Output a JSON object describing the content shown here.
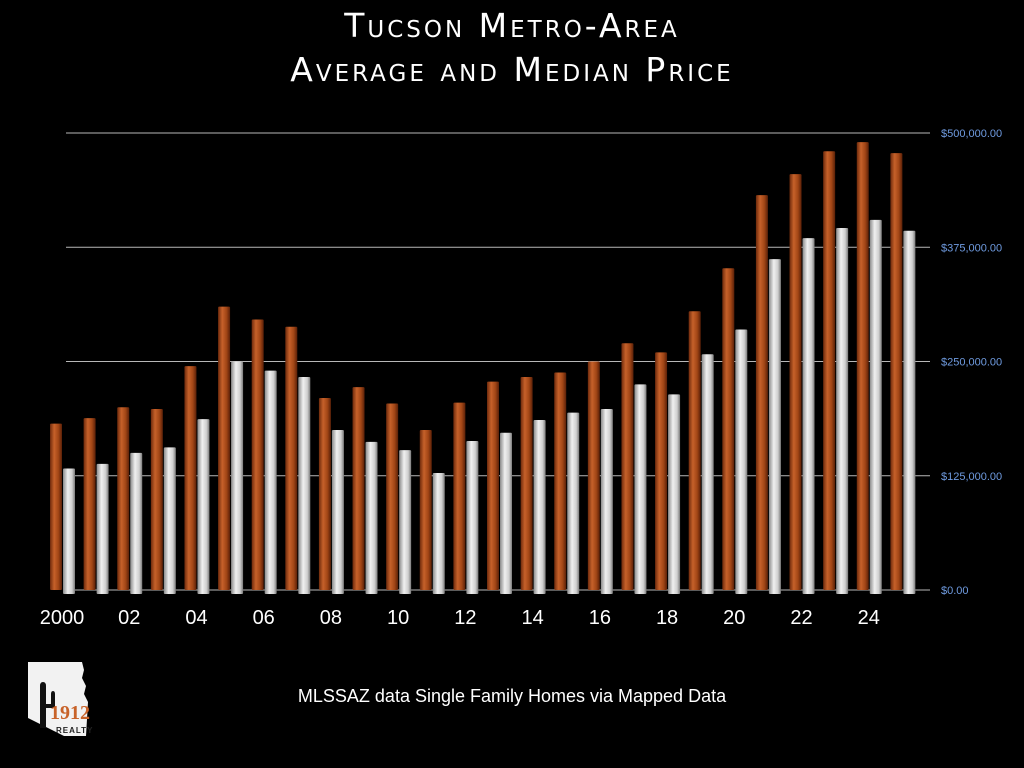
{
  "title_line1": "Tucson Metro-Area",
  "title_line2": "Average and Median Price",
  "source": "MLSSAZ data Single Family Homes via Mapped Data",
  "logo": {
    "text": "1912",
    "sub": "REALTY"
  },
  "colors": {
    "average": "#b5531f",
    "median": "#d9d9d9",
    "grid": "#b8b8b8",
    "tick": "#6f9be0",
    "background": "#000000"
  },
  "chart_data": {
    "type": "bar",
    "title": "Tucson Metro-Area Average and Median Price",
    "categories": [
      "2000",
      "2001",
      "2002",
      "2003",
      "2004",
      "2005",
      "2006",
      "2007",
      "2008",
      "2009",
      "2010",
      "2011",
      "2012",
      "2013",
      "2014",
      "2015",
      "2016",
      "2017",
      "2018",
      "2019",
      "2020",
      "2021",
      "2022",
      "2023",
      "2024",
      "2025"
    ],
    "x_tick_labels": [
      "2000",
      "02",
      "04",
      "06",
      "08",
      "10",
      "12",
      "14",
      "16",
      "18",
      "20",
      "22",
      "24"
    ],
    "y_tick_labels": [
      "$0.00",
      "$125,000.00",
      "$250,000.00",
      "$375,000.00",
      "$500,000.00"
    ],
    "ylim": [
      0,
      500000
    ],
    "grid": true,
    "series": [
      {
        "values": [
          182000,
          188000,
          200000,
          198000,
          245000,
          310000,
          296000,
          288000,
          210000,
          222000,
          204000,
          175000,
          205000,
          228000,
          233000,
          238000,
          250000,
          270000,
          260000,
          305000,
          352000,
          432000,
          455000,
          480000,
          490000,
          478000
        ]
      },
      {
        "values": [
          133000,
          138000,
          150000,
          156000,
          187000,
          250000,
          240000,
          233000,
          175000,
          162000,
          153000,
          128000,
          163000,
          172000,
          186000,
          194000,
          198000,
          225000,
          214000,
          258000,
          285000,
          362000,
          385000,
          396000,
          405000,
          393000
        ]
      }
    ]
  }
}
